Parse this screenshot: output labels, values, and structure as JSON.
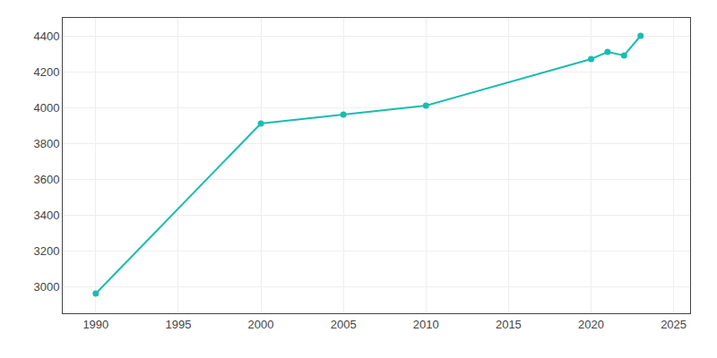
{
  "chart_data": {
    "type": "line",
    "x": [
      1990,
      2000,
      2005,
      2010,
      2020,
      2021,
      2022,
      2023
    ],
    "values": [
      2960,
      3910,
      3960,
      4010,
      4270,
      4310,
      4290,
      4400
    ],
    "color": "#1abcb0",
    "marker": "circle",
    "xlim": [
      1988,
      2026
    ],
    "xticks": [
      1990,
      1995,
      2000,
      2005,
      2010,
      2015,
      2020,
      2025
    ],
    "ylim": [
      2850,
      4500
    ],
    "yticks": [
      3000,
      3200,
      3400,
      3600,
      3800,
      4000,
      4200,
      4400
    ],
    "grid": true
  }
}
